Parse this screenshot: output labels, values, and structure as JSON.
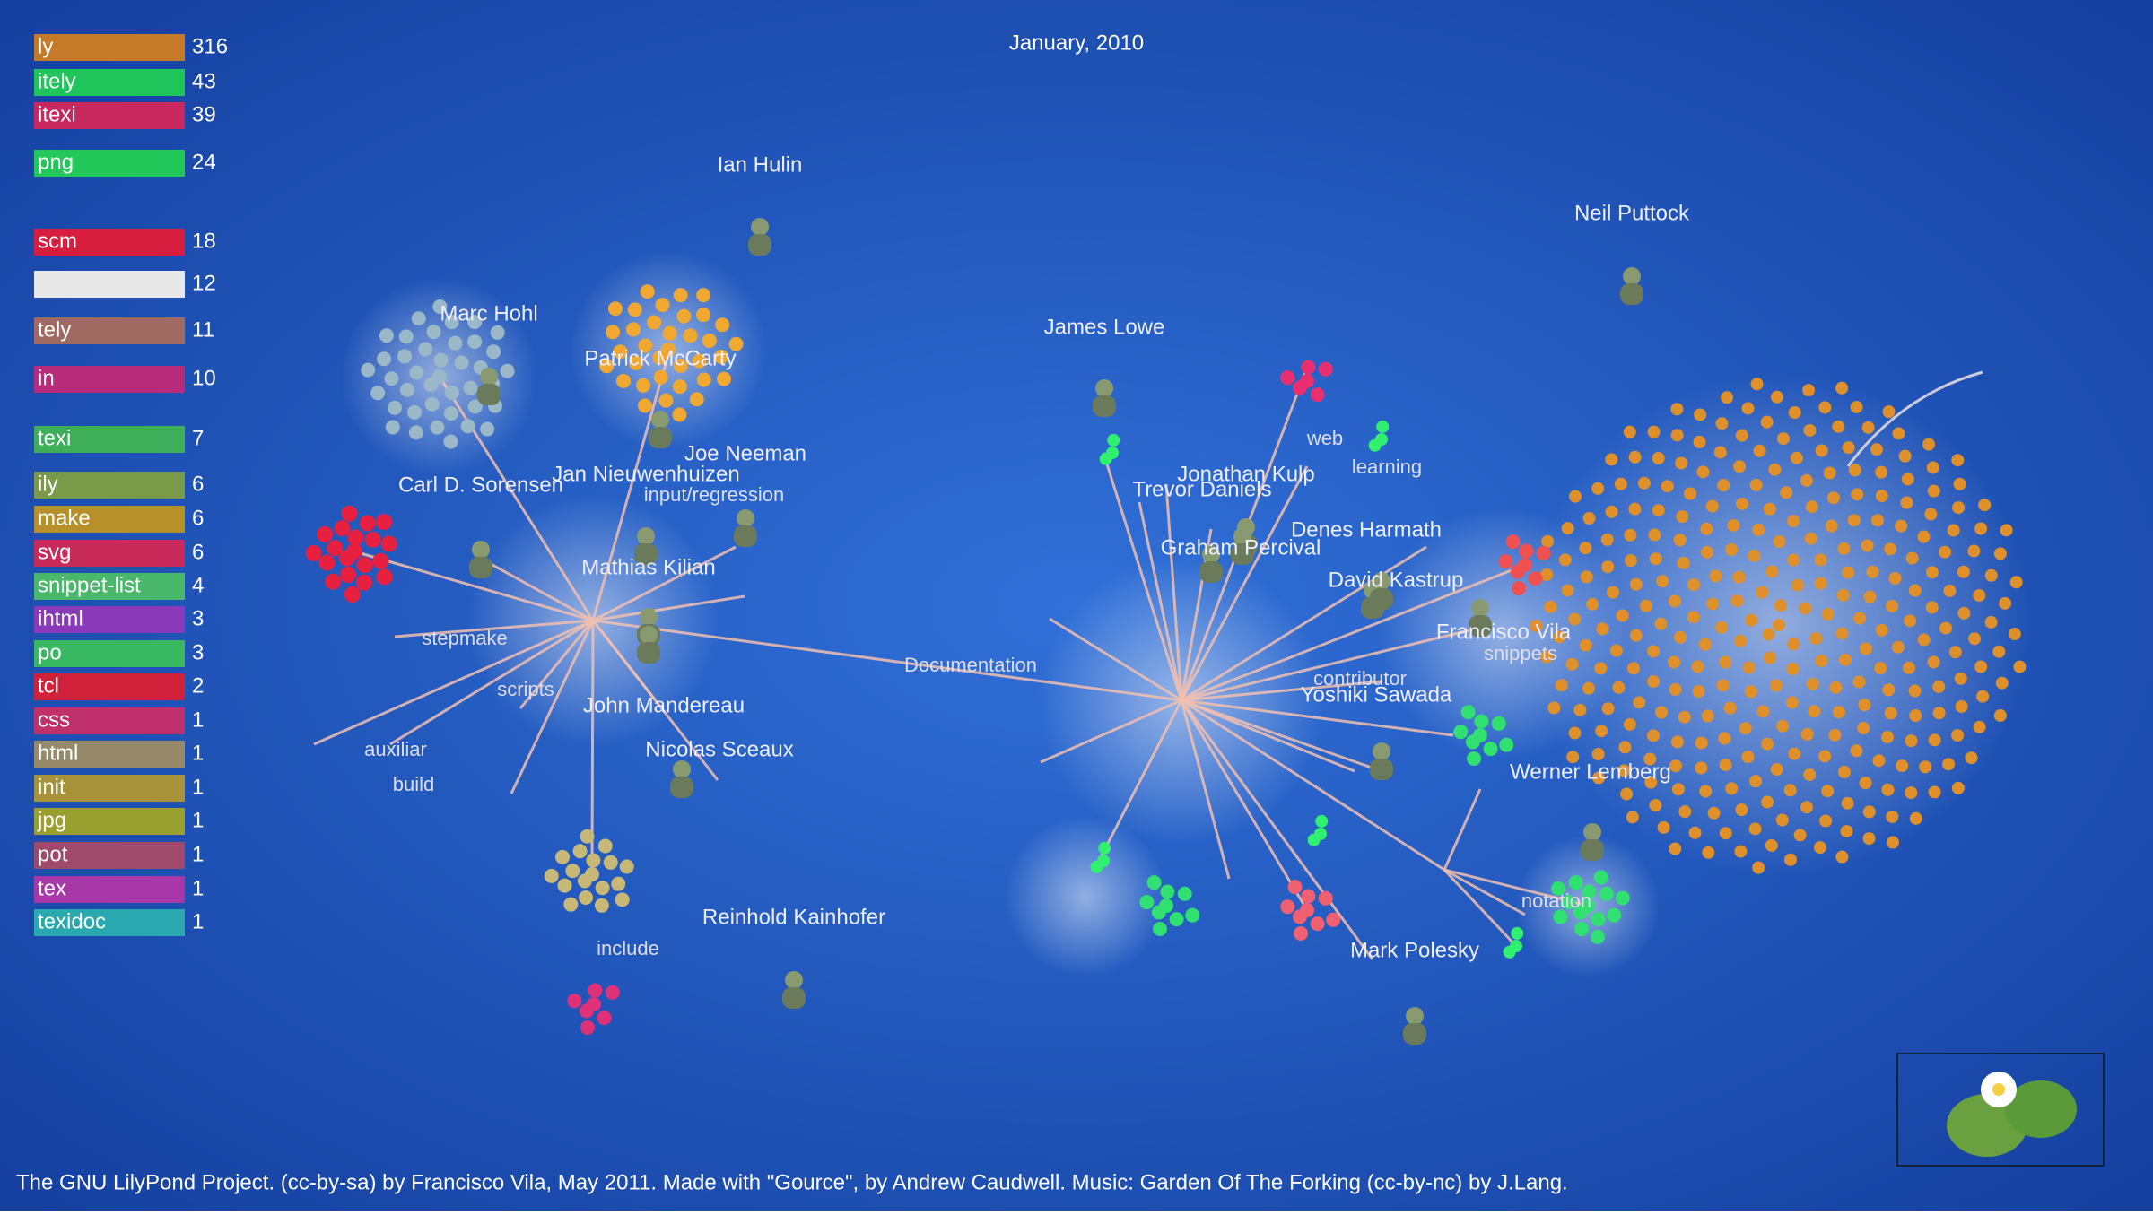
{
  "header": {
    "date": "January, 2010"
  },
  "legend": [
    {
      "ext": "ly",
      "count": 316,
      "color": "#c57a2a"
    },
    {
      "ext": "itely",
      "count": 43,
      "color": "#1fc45a"
    },
    {
      "ext": "itexi",
      "count": 39,
      "color": "#c8285e"
    },
    {
      "ext": "png",
      "count": 24,
      "color": "#22c85a"
    },
    {
      "ext": "scm",
      "count": 18,
      "color": "#d81e3e"
    },
    {
      "count": 12,
      "color": "#e8e8e8"
    },
    {
      "ext": "tely",
      "count": 11,
      "color": "#a06a62"
    },
    {
      "ext": "in",
      "count": 10,
      "color": "#b82a7a"
    },
    {
      "ext": "texi",
      "count": 7,
      "color": "#3fae5a"
    },
    {
      "ext": "ily",
      "count": 6,
      "color": "#7a9a4a"
    },
    {
      "ext": "make",
      "count": 6,
      "color": "#b8902a"
    },
    {
      "ext": "svg",
      "count": 6,
      "color": "#c82a5a"
    },
    {
      "ext": "snippet-list",
      "count": 4,
      "color": "#4ab86a"
    },
    {
      "ext": "ihtml",
      "count": 3,
      "color": "#8a3ab8"
    },
    {
      "ext": "po",
      "count": 3,
      "color": "#38b860"
    },
    {
      "ext": "tcl",
      "count": 2,
      "color": "#d0203a"
    },
    {
      "ext": "css",
      "count": 1,
      "color": "#c0306a"
    },
    {
      "ext": "html",
      "count": 1,
      "color": "#968a6a"
    },
    {
      "ext": "init",
      "count": 1,
      "color": "#a8923a"
    },
    {
      "ext": "jpg",
      "count": 1,
      "color": "#9aa030"
    },
    {
      "ext": "pot",
      "count": 1,
      "color": "#a04a6a"
    },
    {
      "ext": "tex",
      "count": 1,
      "color": "#a838a8"
    },
    {
      "ext": "texidoc",
      "count": 1,
      "color": "#2aa8b0"
    }
  ],
  "users": [
    "Ian Hulin",
    "Neil Puttock",
    "Marc Hohl",
    "Patrick McCarty",
    "James Lowe",
    "Joe Neeman",
    "Jan Nieuwenhuizen",
    "Carl D. Sorensen",
    "Mathias Kilian",
    "John Mandereau",
    "Nicolas Sceaux",
    "Reinhold Kainhofer",
    "Jonathan Kulp",
    "Trevor Daniels",
    "Graham Percival",
    "Denes Harmath",
    "David Kastrup",
    "Francisco Vila",
    "Yoshiki Sawada",
    "Werner Lemberg",
    "Mark Polesky"
  ],
  "directories": [
    "input/regression",
    "Documentation",
    "stepmake",
    "scripts",
    "auxiliar",
    "build",
    "include",
    "web",
    "snippets",
    "contributor",
    "notation",
    "learning"
  ],
  "footer": "The GNU LilyPond Project.  (cc-by-sa) by Francisco Vila, May 2011.  Made with \"Gource\", by Andrew Caudwell.  Music: Garden Of The Forking (cc-by-nc) by J.Lang."
}
